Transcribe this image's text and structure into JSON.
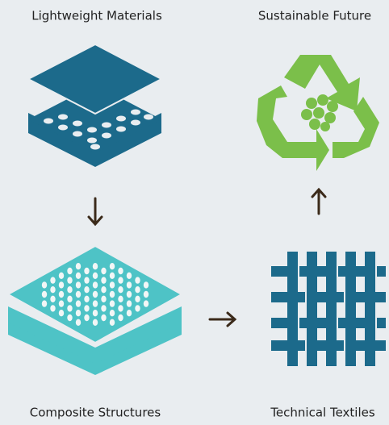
{
  "nodes": [
    {
      "label": "Lightweight Materials"
    },
    {
      "label": "Sustainable Future"
    },
    {
      "label": "Composite Structures"
    },
    {
      "label": "Technical Textiles"
    }
  ]
}
